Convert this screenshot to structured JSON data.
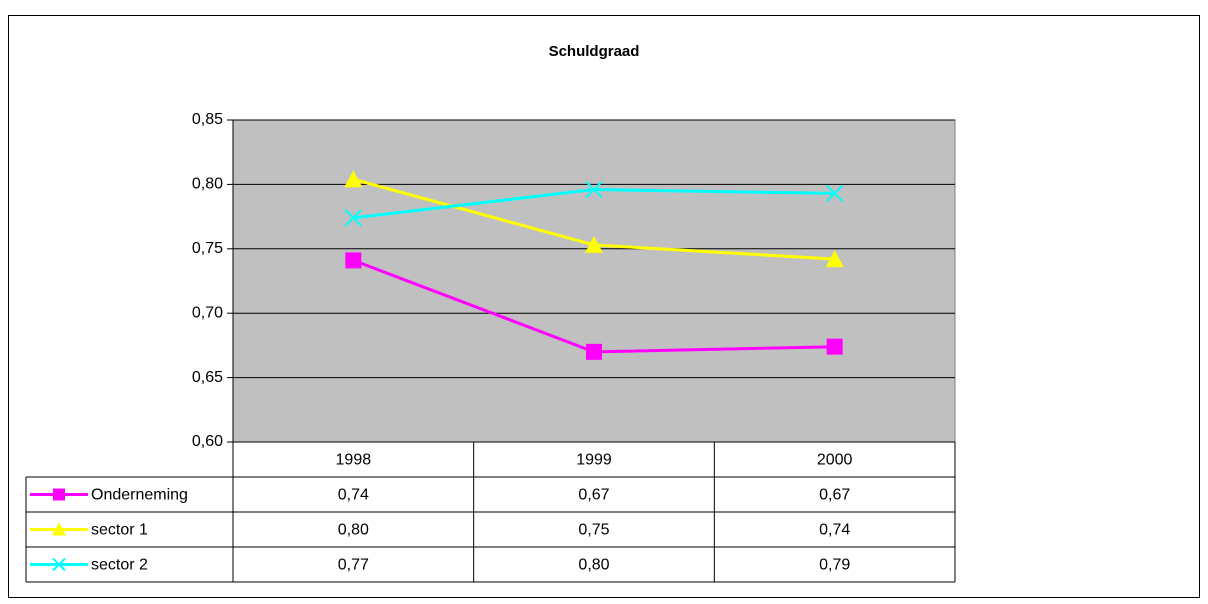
{
  "chart_data": {
    "type": "line",
    "title": "Schuldgraad",
    "categories": [
      "1998",
      "1999",
      "2000"
    ],
    "series": [
      {
        "name": "Onderneming",
        "color": "#ff00ff",
        "marker": "square",
        "values": [
          0.741,
          0.67,
          0.674
        ],
        "value_labels": [
          "0,74",
          "0,67",
          "0,67"
        ]
      },
      {
        "name": "sector 1",
        "color": "#ffff00",
        "marker": "triangle",
        "values": [
          0.804,
          0.753,
          0.742
        ],
        "value_labels": [
          "0,80",
          "0,75",
          "0,74"
        ]
      },
      {
        "name": "sector 2",
        "color": "#00ffff",
        "marker": "x",
        "values": [
          0.774,
          0.796,
          0.793
        ],
        "value_labels": [
          "0,77",
          "0,80",
          "0,79"
        ]
      }
    ],
    "ylim": [
      0.6,
      0.85
    ],
    "yticks": [
      {
        "value": 0.6,
        "label": "0,60"
      },
      {
        "value": 0.65,
        "label": "0,65"
      },
      {
        "value": 0.7,
        "label": "0,70"
      },
      {
        "value": 0.75,
        "label": "0,75"
      },
      {
        "value": 0.8,
        "label": "0,80"
      },
      {
        "value": 0.85,
        "label": "0,85"
      }
    ],
    "grid": true,
    "plot_background": "#c0c0c0"
  }
}
